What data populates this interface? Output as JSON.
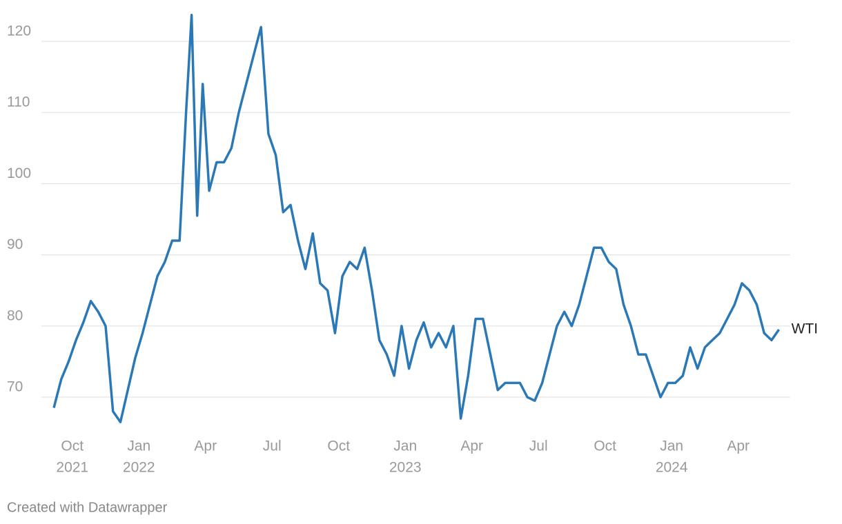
{
  "chart_data": {
    "type": "line",
    "x": [
      "2021-09",
      "2021-09",
      "2021-09",
      "2021-10",
      "2021-10",
      "2021-10",
      "2021-11",
      "2021-11",
      "2021-11",
      "2021-12",
      "2021-12",
      "2021-12",
      "2022-01",
      "2022-01",
      "2022-01",
      "2022-02",
      "2022-02",
      "2022-02",
      "2022-03",
      "2022-03",
      "2022-03",
      "2022-03",
      "2022-04",
      "2022-04",
      "2022-04",
      "2022-05",
      "2022-05",
      "2022-05",
      "2022-06",
      "2022-06",
      "2022-06",
      "2022-07",
      "2022-07",
      "2022-07",
      "2022-08",
      "2022-08",
      "2022-08",
      "2022-09",
      "2022-09",
      "2022-09",
      "2022-10",
      "2022-10",
      "2022-10",
      "2022-11",
      "2022-11",
      "2022-11",
      "2022-12",
      "2022-12",
      "2022-12",
      "2023-01",
      "2023-01",
      "2023-01",
      "2023-02",
      "2023-02",
      "2023-02",
      "2023-03",
      "2023-03",
      "2023-03",
      "2023-04",
      "2023-04",
      "2023-04",
      "2023-05",
      "2023-05",
      "2023-05",
      "2023-06",
      "2023-06",
      "2023-06",
      "2023-07",
      "2023-07",
      "2023-07",
      "2023-08",
      "2023-08",
      "2023-08",
      "2023-09",
      "2023-09",
      "2023-09",
      "2023-10",
      "2023-10",
      "2023-10",
      "2023-11",
      "2023-11",
      "2023-11",
      "2023-12",
      "2023-12",
      "2023-12",
      "2024-01",
      "2024-01",
      "2024-01",
      "2024-02",
      "2024-02",
      "2024-02",
      "2024-03",
      "2024-03",
      "2024-03",
      "2024-04",
      "2024-04",
      "2024-04",
      "2024-05",
      "2024-05",
      "2024-05"
    ],
    "series": [
      {
        "name": "WTI",
        "color": "#2a78b5",
        "values": [
          68.5,
          72.5,
          75,
          78,
          80.5,
          83.5,
          82,
          80,
          68,
          66.5,
          71,
          75.5,
          79,
          83,
          87,
          89,
          92,
          92,
          110,
          123.7,
          95.5,
          114,
          99,
          103,
          103,
          105,
          110,
          114,
          118,
          122,
          107,
          104,
          96,
          97,
          92,
          88,
          93,
          86,
          85,
          79,
          87,
          89,
          88,
          91,
          85,
          78,
          76,
          73,
          80,
          74,
          78,
          80.5,
          77,
          79,
          77,
          80,
          67,
          73,
          81,
          81,
          76,
          71,
          72,
          72,
          72,
          70,
          69.5,
          72,
          76,
          80,
          82,
          80,
          83,
          87,
          91,
          91,
          89,
          88,
          83,
          80,
          76,
          76,
          73,
          70,
          72,
          72,
          73,
          77,
          74,
          77,
          78,
          79,
          81,
          83,
          86,
          85,
          83,
          79,
          78,
          79.5
        ]
      }
    ],
    "xlim": [
      "2021-09",
      "2024-06"
    ],
    "xticks": [
      {
        "value": "2021-10",
        "label": "Oct",
        "year": "2021"
      },
      {
        "value": "2022-01",
        "label": "Jan",
        "year": "2022"
      },
      {
        "value": "2022-04",
        "label": "Apr"
      },
      {
        "value": "2022-07",
        "label": "Jul"
      },
      {
        "value": "2022-10",
        "label": "Oct"
      },
      {
        "value": "2023-01",
        "label": "Jan",
        "year": "2023"
      },
      {
        "value": "2023-04",
        "label": "Apr"
      },
      {
        "value": "2023-07",
        "label": "Jul"
      },
      {
        "value": "2023-10",
        "label": "Oct"
      },
      {
        "value": "2024-01",
        "label": "Jan",
        "year": "2024"
      },
      {
        "value": "2024-04",
        "label": "Apr"
      }
    ],
    "ylim": [
      65,
      124
    ],
    "yticks": [
      70,
      80,
      90,
      100,
      110,
      120
    ],
    "grid": true,
    "source": "Created with Datawrapper"
  }
}
